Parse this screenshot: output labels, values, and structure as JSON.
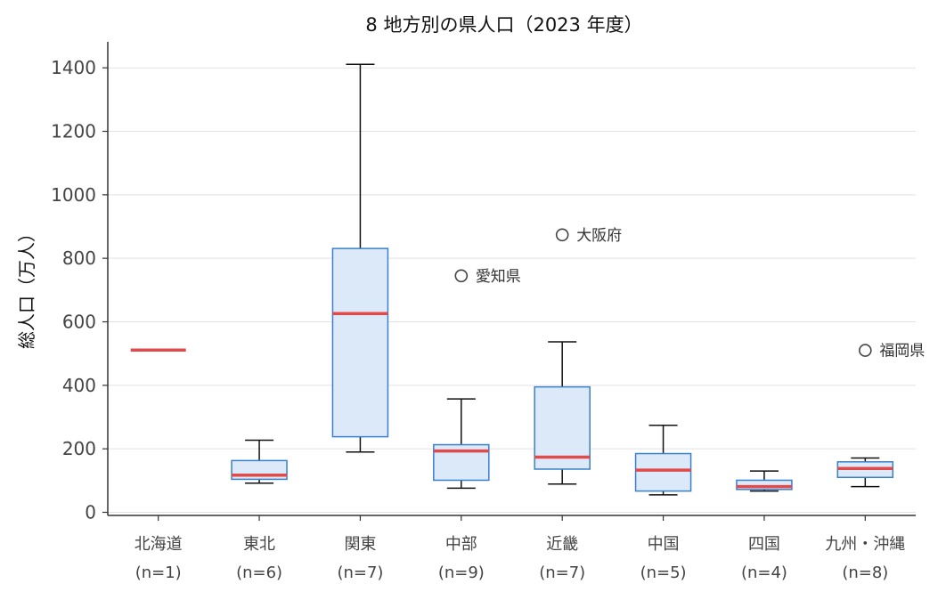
{
  "chart_data": {
    "type": "box",
    "title": "8 地方別の県人口（2023 年度）",
    "xlabel": "",
    "ylabel": "総人口（万人）",
    "ylim": [
      -10,
      1480
    ],
    "yticks": [
      0,
      200,
      400,
      600,
      800,
      1000,
      1200,
      1400
    ],
    "grid": "horizontal",
    "colors": {
      "box_fill": "#dce9f8",
      "box_edge": "#3a7fcc",
      "median": "#e04a4a",
      "whisker": "#111111",
      "grid": "#e2e2e2",
      "axis": "#333333"
    },
    "categories": [
      {
        "name": "北海道",
        "n_label": "(n=1)",
        "whislo": 511,
        "q1": 511,
        "med": 511,
        "q3": 511,
        "whishi": 511,
        "fliers": []
      },
      {
        "name": "東北",
        "n_label": "(n=6)",
        "whislo": 92,
        "q1": 104,
        "med": 117,
        "q3": 163,
        "whishi": 227,
        "fliers": []
      },
      {
        "name": "関東",
        "n_label": "(n=7)",
        "whislo": 190,
        "q1": 238,
        "med": 626,
        "q3": 831,
        "whishi": 1411,
        "fliers": []
      },
      {
        "name": "中部",
        "n_label": "(n=9)",
        "whislo": 76,
        "q1": 101,
        "med": 193,
        "q3": 213,
        "whishi": 357,
        "fliers": [
          {
            "value": 745,
            "label": "愛知県"
          }
        ]
      },
      {
        "name": "近畿",
        "n_label": "(n=7)",
        "whislo": 89,
        "q1": 136,
        "med": 174,
        "q3": 395,
        "whishi": 537,
        "fliers": [
          {
            "value": 874,
            "label": "大阪府"
          }
        ]
      },
      {
        "name": "中国",
        "n_label": "(n=5)",
        "whislo": 55,
        "q1": 67,
        "med": 133,
        "q3": 185,
        "whishi": 274,
        "fliers": []
      },
      {
        "name": "四国",
        "n_label": "(n=4)",
        "whislo": 67,
        "q1": 72,
        "med": 81,
        "q3": 101,
        "whishi": 130,
        "fliers": []
      },
      {
        "name": "九州・沖縄",
        "n_label": "(n=8)",
        "whislo": 81,
        "q1": 110,
        "med": 138,
        "q3": 159,
        "whishi": 171,
        "fliers": [
          {
            "value": 510,
            "label": "福岡県"
          }
        ]
      }
    ]
  }
}
